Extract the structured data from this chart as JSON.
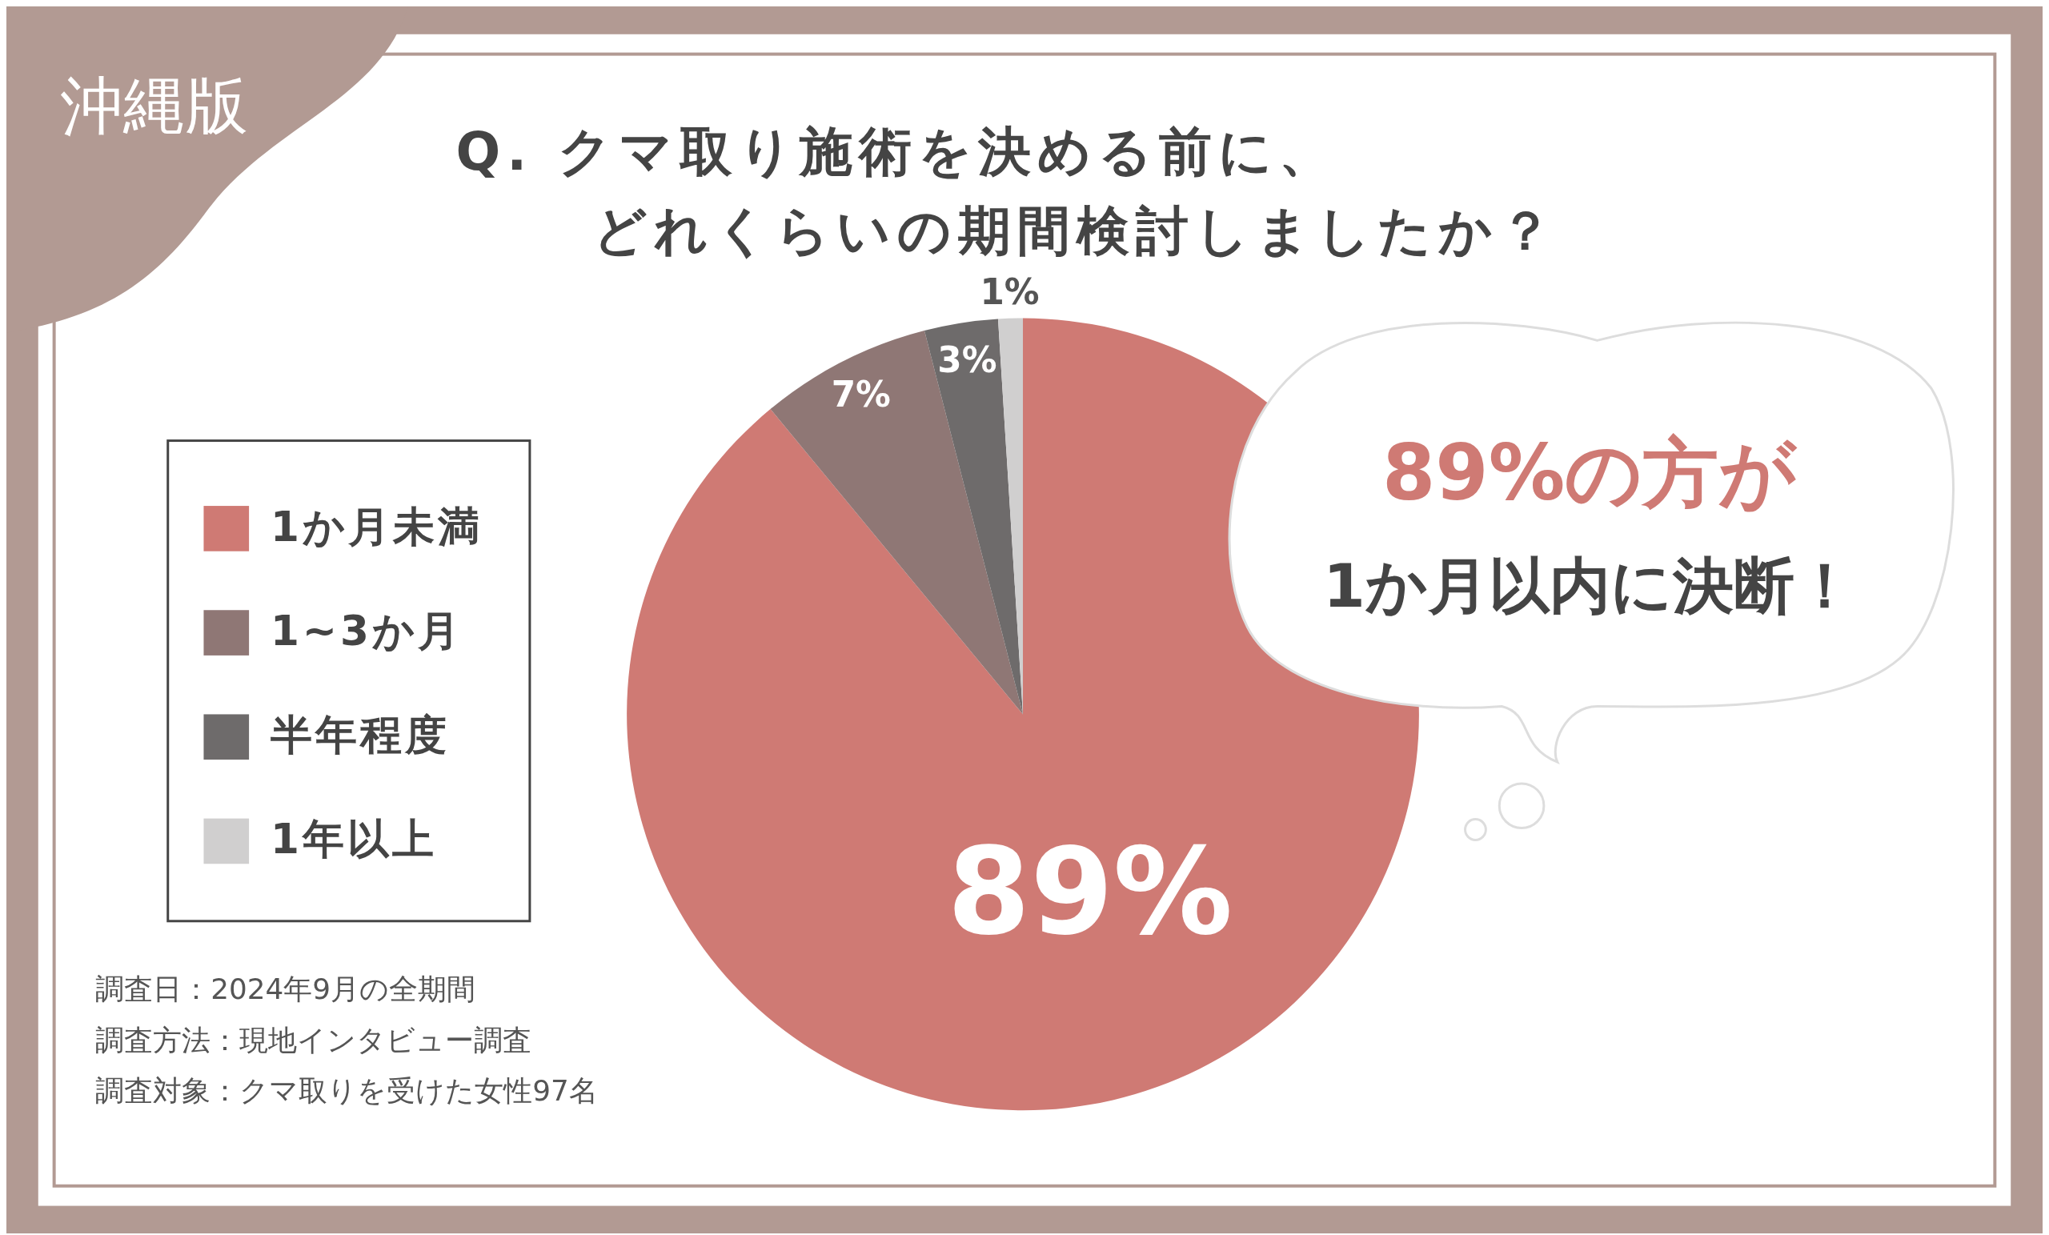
{
  "chart_data": {
    "type": "pie",
    "title": "Q. クマ取り施術を決める前に、どれくらいの期間検討しましたか？",
    "subtitle": "沖縄版",
    "categories": [
      "1か月未満",
      "1~3か月",
      "半年程度",
      "1年以上"
    ],
    "values": [
      89,
      7,
      3,
      1
    ],
    "colors": [
      "#cf7a74",
      "#8f7775",
      "#6e6b6b",
      "#d0cfcf"
    ],
    "value_labels": [
      "89%",
      "7%",
      "3%",
      "1%"
    ],
    "legend": "left",
    "annotations": [
      "89%の方が",
      "1か月以内に決断！",
      "調査日：2024年9月の全期間",
      "調査方法：現地インタビュー調査",
      "調査対象：クマ取りを受けた女性97名"
    ]
  }
}
